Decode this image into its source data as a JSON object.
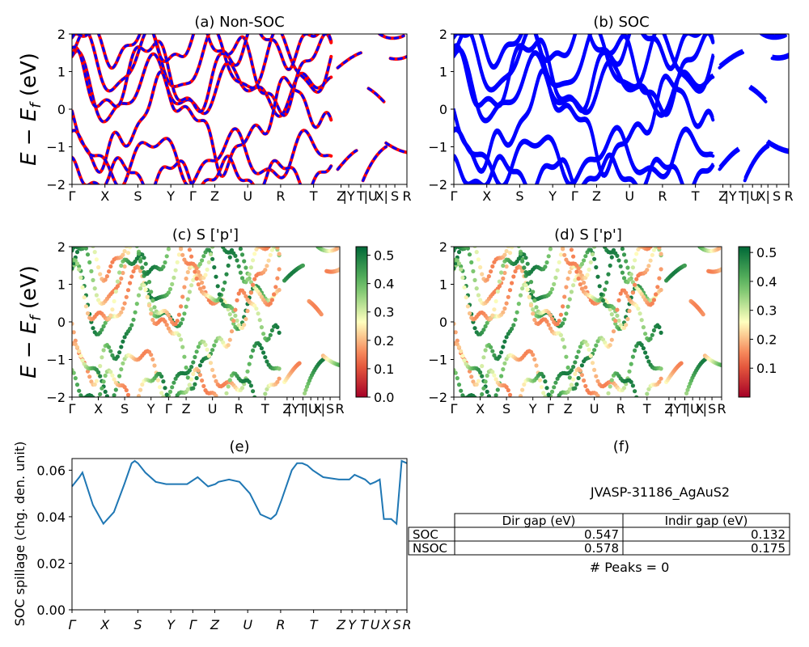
{
  "figure": {
    "ylabel_main": "E − E",
    "ylabel_sub": "f",
    "ylabel_unit": " (eV)",
    "kpath": [
      "Γ",
      "X",
      "S",
      "Y",
      "Γ",
      "Z",
      "U",
      "R",
      "T",
      "Z|Y",
      "T|U",
      "X|S",
      "R"
    ]
  },
  "chart_data": [
    {
      "id": "a",
      "type": "line",
      "title": "(a) Non-SOC",
      "ylim": [
        -2,
        2
      ],
      "yticks": [
        "2",
        "1",
        "0",
        "−1",
        "−2"
      ],
      "xticks": [
        "Γ",
        "X",
        "S",
        "Y",
        "Γ",
        "Z",
        "U",
        "R",
        "T",
        "Z",
        "|Y",
        "T",
        "|U",
        "X",
        "|",
        "S",
        "R"
      ],
      "series": [
        {
          "color": "#ff0000",
          "style": "solid"
        },
        {
          "color": "#0000ff",
          "style": "dashed"
        }
      ]
    },
    {
      "id": "b",
      "type": "line",
      "title": "(b) SOC",
      "ylim": [
        -2,
        2
      ],
      "yticks": [
        "2",
        "1",
        "0",
        "−1",
        "−2"
      ],
      "xticks": [
        "Γ",
        "X",
        "S",
        "Y",
        "Γ",
        "Z",
        "U",
        "R",
        "T",
        "Z",
        "|Y",
        "T",
        "|U",
        "X",
        "|",
        "S",
        "R"
      ],
      "series": [
        {
          "color": "#0000ff",
          "style": "solid"
        }
      ]
    },
    {
      "id": "c",
      "type": "scatter",
      "title": "(c)  S ['p']",
      "ylim": [
        -2,
        2
      ],
      "yticks": [
        "2",
        "1",
        "0",
        "−1",
        "−2"
      ],
      "xticks": [
        "Γ",
        "X",
        "S",
        "Y",
        "Γ",
        "Z",
        "U",
        "R",
        "T",
        "Z",
        "|Y",
        "T",
        "|U",
        "X",
        "|",
        "S",
        "R"
      ],
      "colorbar": {
        "ticks": [
          "0.5",
          "0.4",
          "0.3",
          "0.2",
          "0.1",
          "0.0"
        ],
        "range": [
          0.0,
          0.53
        ],
        "colormap": "RdYlGn"
      }
    },
    {
      "id": "d",
      "type": "scatter",
      "title": "(d) S ['p']",
      "ylim": [
        -2,
        2
      ],
      "yticks": [
        "2",
        "1",
        "0",
        "−1",
        "−2"
      ],
      "xticks": [
        "Γ",
        "X",
        "S",
        "Y",
        "Γ",
        "Z",
        "U",
        "R",
        "T",
        "Z",
        "|Y",
        "T",
        "|U",
        "X",
        "|",
        "S",
        "R"
      ],
      "colorbar": {
        "ticks": [
          "0.5",
          "0.4",
          "0.3",
          "0.2",
          "0.1"
        ],
        "range": [
          0.0,
          0.52
        ],
        "colormap": "RdYlGn"
      }
    },
    {
      "id": "e",
      "type": "line",
      "title": "(e)",
      "ylabel": "SOC spillage (chg. den. unit)",
      "ylim": [
        0.0,
        0.065
      ],
      "yticks": [
        "0.06",
        "0.04",
        "0.02",
        "0.00"
      ],
      "xticks": [
        "Γ",
        "X",
        "S",
        "Y",
        "Γ",
        "Z",
        "U",
        "R",
        "T",
        "Z",
        "Y",
        "T",
        "U",
        "X",
        "S",
        "R"
      ],
      "x": [
        0,
        0.7,
        1,
        1.5,
        2,
        3,
        4,
        5,
        5.7,
        6,
        6.3,
        7,
        8,
        9,
        10,
        11,
        12,
        12.5,
        13,
        13.7,
        14,
        15,
        16,
        17,
        18,
        19,
        19.5,
        20,
        21,
        21.5,
        22,
        22.5,
        23,
        24,
        25.5,
        26.5,
        27,
        28,
        28.5,
        29,
        29.4,
        29.8,
        30.2,
        30.5,
        31,
        31.5,
        32
      ],
      "values": [
        0.053,
        0.057,
        0.059,
        0.052,
        0.045,
        0.037,
        0.042,
        0.054,
        0.063,
        0.064,
        0.063,
        0.059,
        0.055,
        0.054,
        0.054,
        0.054,
        0.057,
        0.055,
        0.053,
        0.054,
        0.055,
        0.056,
        0.055,
        0.05,
        0.041,
        0.039,
        0.041,
        0.047,
        0.06,
        0.063,
        0.063,
        0.062,
        0.06,
        0.057,
        0.056,
        0.056,
        0.058,
        0.056,
        0.054,
        0.055,
        0.056,
        0.039,
        0.039,
        0.039,
        0.037,
        0.064,
        0.063
      ]
    }
  ],
  "panel_f": {
    "title": "(f)",
    "material": "JVASP-31186_AgAuS2",
    "table": {
      "headers": [
        "",
        "Dir gap (eV)",
        "Indir gap (eV)"
      ],
      "rows": [
        {
          "label": "SOC",
          "dir": "0.547",
          "indir": "0.132"
        },
        {
          "label": "NSOC",
          "dir": "0.578",
          "indir": "0.175"
        }
      ]
    },
    "peaks": "# Peaks = 0"
  },
  "colors": {
    "red": "#ff0000",
    "blue": "#0000ff",
    "spillage": "#1f77b4"
  }
}
